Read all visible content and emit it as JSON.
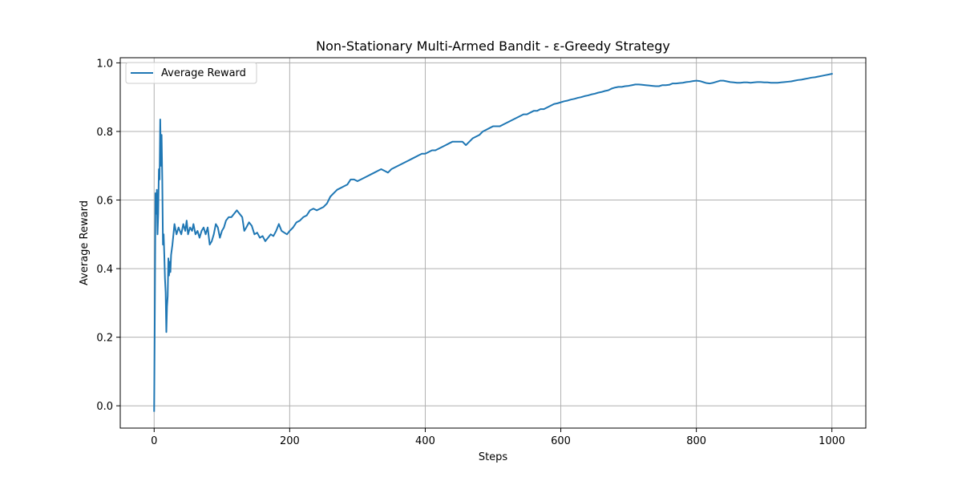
{
  "chart_data": {
    "type": "line",
    "title": "Non-Stationary Multi-Armed Bandit - ε-Greedy Strategy",
    "xlabel": "Steps",
    "ylabel": "Average Reward",
    "xlim": [
      -50,
      1050
    ],
    "ylim": [
      -0.065,
      1.015
    ],
    "x_ticks": [
      0,
      200,
      400,
      600,
      800,
      1000
    ],
    "y_ticks": [
      0.0,
      0.2,
      0.4,
      0.6,
      0.8,
      1.0
    ],
    "x_tick_labels": [
      "0",
      "200",
      "400",
      "600",
      "800",
      "1000"
    ],
    "y_tick_labels": [
      "0.0",
      "0.2",
      "0.4",
      "0.6",
      "0.8",
      "1.0"
    ],
    "grid": true,
    "legend_position": "upper-left",
    "series": [
      {
        "name": "Average Reward",
        "color": "#1f77b4",
        "points": [
          [
            0,
            -0.015
          ],
          [
            1,
            0.28
          ],
          [
            2,
            0.62
          ],
          [
            3,
            0.56
          ],
          [
            4,
            0.63
          ],
          [
            5,
            0.5
          ],
          [
            6,
            0.56
          ],
          [
            7,
            0.69
          ],
          [
            8,
            0.66
          ],
          [
            9,
            0.835
          ],
          [
            10,
            0.7
          ],
          [
            11,
            0.79
          ],
          [
            12,
            0.66
          ],
          [
            13,
            0.47
          ],
          [
            14,
            0.5
          ],
          [
            15,
            0.44
          ],
          [
            16,
            0.37
          ],
          [
            17,
            0.33
          ],
          [
            18,
            0.215
          ],
          [
            19,
            0.29
          ],
          [
            20,
            0.32
          ],
          [
            21,
            0.43
          ],
          [
            22,
            0.38
          ],
          [
            23,
            0.42
          ],
          [
            24,
            0.39
          ],
          [
            25,
            0.44
          ],
          [
            27,
            0.47
          ],
          [
            30,
            0.53
          ],
          [
            33,
            0.5
          ],
          [
            36,
            0.52
          ],
          [
            40,
            0.5
          ],
          [
            43,
            0.53
          ],
          [
            46,
            0.51
          ],
          [
            48,
            0.54
          ],
          [
            50,
            0.5
          ],
          [
            53,
            0.52
          ],
          [
            56,
            0.51
          ],
          [
            58,
            0.53
          ],
          [
            61,
            0.5
          ],
          [
            64,
            0.51
          ],
          [
            67,
            0.49
          ],
          [
            70,
            0.51
          ],
          [
            73,
            0.52
          ],
          [
            76,
            0.5
          ],
          [
            79,
            0.52
          ],
          [
            82,
            0.47
          ],
          [
            85,
            0.48
          ],
          [
            88,
            0.5
          ],
          [
            91,
            0.53
          ],
          [
            94,
            0.52
          ],
          [
            97,
            0.49
          ],
          [
            100,
            0.51
          ],
          [
            103,
            0.52
          ],
          [
            106,
            0.54
          ],
          [
            110,
            0.55
          ],
          [
            114,
            0.55
          ],
          [
            118,
            0.56
          ],
          [
            122,
            0.57
          ],
          [
            126,
            0.56
          ],
          [
            130,
            0.55
          ],
          [
            133,
            0.51
          ],
          [
            136,
            0.52
          ],
          [
            140,
            0.535
          ],
          [
            144,
            0.525
          ],
          [
            148,
            0.5
          ],
          [
            152,
            0.505
          ],
          [
            156,
            0.49
          ],
          [
            160,
            0.495
          ],
          [
            164,
            0.48
          ],
          [
            168,
            0.49
          ],
          [
            172,
            0.5
          ],
          [
            176,
            0.495
          ],
          [
            180,
            0.51
          ],
          [
            184,
            0.53
          ],
          [
            188,
            0.51
          ],
          [
            192,
            0.505
          ],
          [
            196,
            0.5
          ],
          [
            200,
            0.51
          ],
          [
            205,
            0.52
          ],
          [
            210,
            0.535
          ],
          [
            215,
            0.54
          ],
          [
            220,
            0.55
          ],
          [
            225,
            0.555
          ],
          [
            230,
            0.57
          ],
          [
            235,
            0.575
          ],
          [
            240,
            0.57
          ],
          [
            245,
            0.575
          ],
          [
            250,
            0.58
          ],
          [
            255,
            0.59
          ],
          [
            260,
            0.61
          ],
          [
            265,
            0.62
          ],
          [
            270,
            0.63
          ],
          [
            275,
            0.635
          ],
          [
            280,
            0.64
          ],
          [
            285,
            0.645
          ],
          [
            290,
            0.66
          ],
          [
            295,
            0.66
          ],
          [
            300,
            0.655
          ],
          [
            305,
            0.66
          ],
          [
            310,
            0.665
          ],
          [
            315,
            0.67
          ],
          [
            320,
            0.675
          ],
          [
            325,
            0.68
          ],
          [
            330,
            0.685
          ],
          [
            335,
            0.69
          ],
          [
            340,
            0.685
          ],
          [
            345,
            0.68
          ],
          [
            350,
            0.69
          ],
          [
            355,
            0.695
          ],
          [
            360,
            0.7
          ],
          [
            365,
            0.705
          ],
          [
            370,
            0.71
          ],
          [
            375,
            0.715
          ],
          [
            380,
            0.72
          ],
          [
            385,
            0.725
          ],
          [
            390,
            0.73
          ],
          [
            395,
            0.735
          ],
          [
            400,
            0.735
          ],
          [
            405,
            0.74
          ],
          [
            410,
            0.745
          ],
          [
            415,
            0.745
          ],
          [
            420,
            0.75
          ],
          [
            425,
            0.755
          ],
          [
            430,
            0.76
          ],
          [
            435,
            0.765
          ],
          [
            440,
            0.77
          ],
          [
            445,
            0.77
          ],
          [
            450,
            0.77
          ],
          [
            455,
            0.77
          ],
          [
            460,
            0.76
          ],
          [
            465,
            0.77
          ],
          [
            470,
            0.78
          ],
          [
            475,
            0.785
          ],
          [
            480,
            0.79
          ],
          [
            485,
            0.8
          ],
          [
            490,
            0.805
          ],
          [
            495,
            0.81
          ],
          [
            500,
            0.815
          ],
          [
            505,
            0.815
          ],
          [
            510,
            0.815
          ],
          [
            515,
            0.82
          ],
          [
            520,
            0.825
          ],
          [
            525,
            0.83
          ],
          [
            530,
            0.835
          ],
          [
            535,
            0.84
          ],
          [
            540,
            0.845
          ],
          [
            545,
            0.85
          ],
          [
            550,
            0.85
          ],
          [
            555,
            0.855
          ],
          [
            560,
            0.86
          ],
          [
            565,
            0.86
          ],
          [
            570,
            0.865
          ],
          [
            575,
            0.865
          ],
          [
            580,
            0.87
          ],
          [
            585,
            0.875
          ],
          [
            590,
            0.88
          ],
          [
            595,
            0.882
          ],
          [
            600,
            0.885
          ],
          [
            605,
            0.888
          ],
          [
            610,
            0.89
          ],
          [
            615,
            0.893
          ],
          [
            620,
            0.895
          ],
          [
            625,
            0.898
          ],
          [
            630,
            0.9
          ],
          [
            635,
            0.903
          ],
          [
            640,
            0.905
          ],
          [
            645,
            0.908
          ],
          [
            650,
            0.91
          ],
          [
            655,
            0.913
          ],
          [
            660,
            0.915
          ],
          [
            665,
            0.918
          ],
          [
            670,
            0.92
          ],
          [
            675,
            0.925
          ],
          [
            680,
            0.928
          ],
          [
            685,
            0.93
          ],
          [
            690,
            0.93
          ],
          [
            695,
            0.932
          ],
          [
            700,
            0.933
          ],
          [
            705,
            0.935
          ],
          [
            710,
            0.937
          ],
          [
            715,
            0.937
          ],
          [
            720,
            0.936
          ],
          [
            725,
            0.935
          ],
          [
            730,
            0.934
          ],
          [
            735,
            0.933
          ],
          [
            740,
            0.932
          ],
          [
            745,
            0.932
          ],
          [
            750,
            0.935
          ],
          [
            755,
            0.935
          ],
          [
            760,
            0.936
          ],
          [
            765,
            0.94
          ],
          [
            770,
            0.94
          ],
          [
            775,
            0.941
          ],
          [
            780,
            0.942
          ],
          [
            785,
            0.944
          ],
          [
            790,
            0.945
          ],
          [
            795,
            0.947
          ],
          [
            800,
            0.948
          ],
          [
            805,
            0.947
          ],
          [
            810,
            0.944
          ],
          [
            815,
            0.941
          ],
          [
            820,
            0.94
          ],
          [
            825,
            0.942
          ],
          [
            830,
            0.945
          ],
          [
            835,
            0.948
          ],
          [
            840,
            0.948
          ],
          [
            845,
            0.946
          ],
          [
            850,
            0.944
          ],
          [
            855,
            0.943
          ],
          [
            860,
            0.942
          ],
          [
            865,
            0.942
          ],
          [
            870,
            0.943
          ],
          [
            875,
            0.943
          ],
          [
            880,
            0.942
          ],
          [
            885,
            0.943
          ],
          [
            890,
            0.944
          ],
          [
            895,
            0.944
          ],
          [
            900,
            0.943
          ],
          [
            905,
            0.943
          ],
          [
            910,
            0.942
          ],
          [
            915,
            0.942
          ],
          [
            920,
            0.942
          ],
          [
            925,
            0.943
          ],
          [
            930,
            0.944
          ],
          [
            935,
            0.945
          ],
          [
            940,
            0.946
          ],
          [
            945,
            0.948
          ],
          [
            950,
            0.95
          ],
          [
            955,
            0.951
          ],
          [
            960,
            0.953
          ],
          [
            965,
            0.955
          ],
          [
            970,
            0.957
          ],
          [
            975,
            0.958
          ],
          [
            980,
            0.96
          ],
          [
            985,
            0.962
          ],
          [
            990,
            0.964
          ],
          [
            995,
            0.966
          ],
          [
            1000,
            0.968
          ]
        ]
      }
    ]
  }
}
